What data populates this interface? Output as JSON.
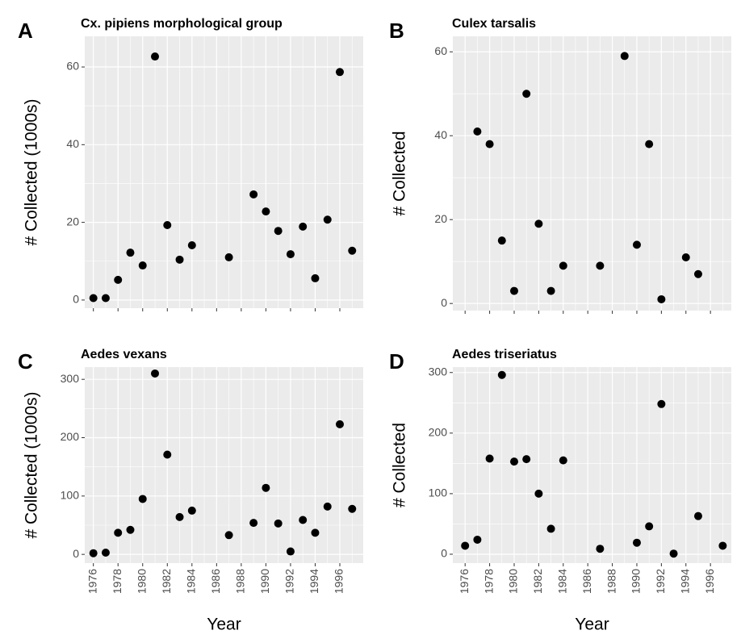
{
  "chart_data": [
    {
      "type": "scatter",
      "tag": "A",
      "title": "Cx. pipiens morphological group",
      "ylabel": "# Collected (1000s)",
      "x": [
        1976,
        1977,
        1978,
        1979,
        1980,
        1981,
        1982,
        1983,
        1984,
        1987,
        1989,
        1990,
        1991,
        1992,
        1993,
        1994,
        1995,
        1996,
        1997
      ],
      "values": [
        0.5,
        0.5,
        5.2,
        12.2,
        8.9,
        62.7,
        19.3,
        10.4,
        14.1,
        11.0,
        27.2,
        22.8,
        17.8,
        11.8,
        18.9,
        5.6,
        20.7,
        58.7,
        12.7
      ],
      "color": "#000000",
      "xlim": [
        1975.3,
        1997.9
      ],
      "ylim": [
        -2.1,
        67.9
      ],
      "xticks": [
        1976,
        1978,
        1980,
        1982,
        1984,
        1986,
        1988,
        1990,
        1992,
        1994,
        1996
      ],
      "yticks": [
        0,
        20,
        40,
        60
      ],
      "xtick_labels": false,
      "grid": true
    },
    {
      "type": "scatter",
      "tag": "B",
      "title": "Culex tarsalis",
      "ylabel": "# Collected",
      "x": [
        1977,
        1978,
        1979,
        1980,
        1981,
        1982,
        1983,
        1984,
        1987,
        1989,
        1990,
        1991,
        1992,
        1994,
        1995
      ],
      "values": [
        41,
        38,
        15,
        3,
        50,
        19,
        3,
        9,
        9,
        59,
        14,
        38,
        1,
        11,
        7
      ],
      "color": "#000000",
      "xlim": [
        1975.0,
        1997.7
      ],
      "ylim": [
        -1.7,
        63.7
      ],
      "xticks": [
        1976,
        1978,
        1980,
        1982,
        1984,
        1986,
        1988,
        1990,
        1992,
        1994,
        1996
      ],
      "yticks": [
        0,
        20,
        40,
        60
      ],
      "xtick_labels": false,
      "grid": true
    },
    {
      "type": "scatter",
      "tag": "C",
      "title": "Aedes vexans",
      "ylabel": "# Collected (1000s)",
      "xlabel": "Year",
      "x": [
        1976,
        1977,
        1978,
        1979,
        1980,
        1981,
        1982,
        1983,
        1984,
        1987,
        1989,
        1990,
        1991,
        1992,
        1993,
        1994,
        1995,
        1996,
        1997
      ],
      "values": [
        2,
        3,
        37,
        42,
        95,
        310,
        171,
        64,
        75,
        33,
        54,
        114,
        53,
        5,
        59,
        37,
        82,
        223,
        78
      ],
      "color": "#000000",
      "xlim": [
        1975.3,
        1997.9
      ],
      "ylim": [
        -15,
        321
      ],
      "xticks": [
        1976,
        1978,
        1980,
        1982,
        1984,
        1986,
        1988,
        1990,
        1992,
        1994,
        1996
      ],
      "yticks": [
        0,
        100,
        200,
        300
      ],
      "xtick_labels": true,
      "grid": true
    },
    {
      "type": "scatter",
      "tag": "D",
      "title": "Aedes triseriatus",
      "ylabel": "# Collected",
      "xlabel": "Year",
      "x": [
        1976,
        1977,
        1978,
        1979,
        1980,
        1981,
        1982,
        1983,
        1984,
        1987,
        1990,
        1991,
        1992,
        1993,
        1995,
        1997
      ],
      "values": [
        14,
        24,
        158,
        296,
        153,
        157,
        100,
        42,
        155,
        9,
        19,
        46,
        248,
        1,
        63,
        14
      ],
      "color": "#000000",
      "xlim": [
        1975.0,
        1997.7
      ],
      "ylim": [
        -14.7,
        309
      ],
      "xticks": [
        1976,
        1978,
        1980,
        1982,
        1984,
        1986,
        1988,
        1990,
        1992,
        1994,
        1996
      ],
      "yticks": [
        0,
        100,
        200,
        300
      ],
      "xtick_labels": true,
      "grid": true
    }
  ]
}
